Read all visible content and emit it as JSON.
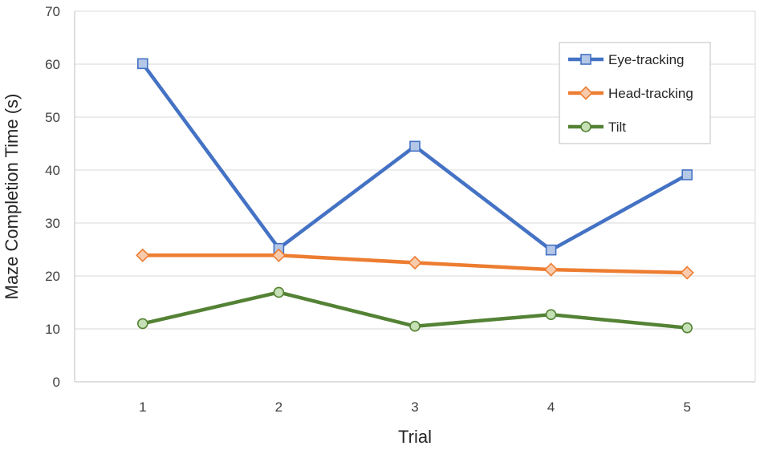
{
  "chart_data": {
    "type": "line",
    "title": "",
    "xlabel": "Trial",
    "ylabel": "Maze Completion Time (s)",
    "x": [
      1,
      2,
      3,
      4,
      5
    ],
    "ylim": [
      0,
      70
    ],
    "yticks": [
      0,
      10,
      20,
      30,
      40,
      50,
      60,
      70
    ],
    "grid": true,
    "legend_position": "top-right",
    "series": [
      {
        "name": "Eye-tracking",
        "values": [
          60.1,
          25.2,
          44.5,
          24.9,
          39.1
        ],
        "color": "#4472C4",
        "marker_fill": "#B4C7E7",
        "marker": "square"
      },
      {
        "name": "Head-tracking",
        "values": [
          23.9,
          23.9,
          22.5,
          21.2,
          20.6
        ],
        "color": "#ED7D31",
        "marker_fill": "#F8CBAD",
        "marker": "diamond"
      },
      {
        "name": "Tilt",
        "values": [
          11.0,
          16.9,
          10.5,
          12.7,
          10.2
        ],
        "color": "#548235",
        "marker_fill": "#C5E0B4",
        "marker": "circle"
      }
    ]
  }
}
